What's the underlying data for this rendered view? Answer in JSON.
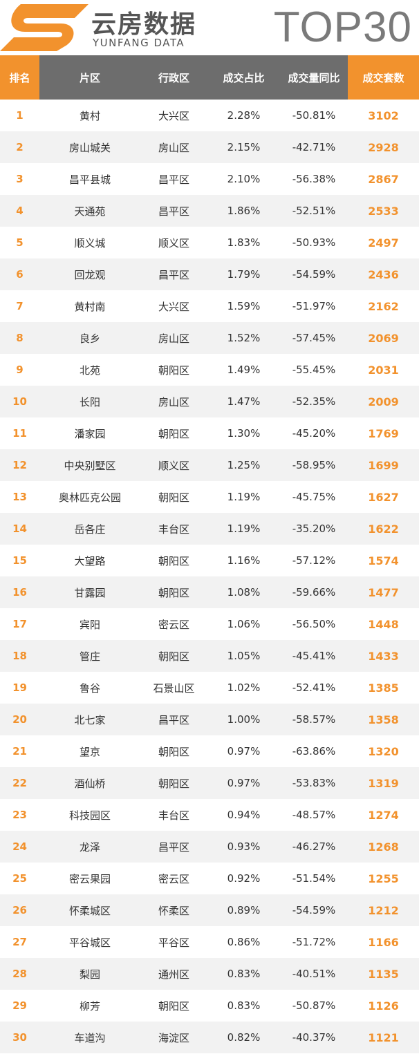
{
  "header": {
    "brand_cn": "云房数据",
    "brand_en": "YUNFANG DATA",
    "title": "TOP30",
    "colors": {
      "accent": "#f2922d",
      "header_gray": "#6d6d6d",
      "title_gray": "#7a7a7a"
    },
    "logo_icon": "yunfang-logo-icon"
  },
  "table": {
    "columns": [
      "排名",
      "片区",
      "行政区",
      "成交占比",
      "成交量同比",
      "成交套数"
    ],
    "rows": [
      [
        "1",
        "黄村",
        "大兴区",
        "2.28%",
        "-50.81%",
        "3102"
      ],
      [
        "2",
        "房山城关",
        "房山区",
        "2.15%",
        "-42.71%",
        "2928"
      ],
      [
        "3",
        "昌平县城",
        "昌平区",
        "2.10%",
        "-56.38%",
        "2867"
      ],
      [
        "4",
        "天通苑",
        "昌平区",
        "1.86%",
        "-52.51%",
        "2533"
      ],
      [
        "5",
        "顺义城",
        "顺义区",
        "1.83%",
        "-50.93%",
        "2497"
      ],
      [
        "6",
        "回龙观",
        "昌平区",
        "1.79%",
        "-54.59%",
        "2436"
      ],
      [
        "7",
        "黄村南",
        "大兴区",
        "1.59%",
        "-51.97%",
        "2162"
      ],
      [
        "8",
        "良乡",
        "房山区",
        "1.52%",
        "-57.45%",
        "2069"
      ],
      [
        "9",
        "北苑",
        "朝阳区",
        "1.49%",
        "-55.45%",
        "2031"
      ],
      [
        "10",
        "长阳",
        "房山区",
        "1.47%",
        "-52.35%",
        "2009"
      ],
      [
        "11",
        "潘家园",
        "朝阳区",
        "1.30%",
        "-45.20%",
        "1769"
      ],
      [
        "12",
        "中央别墅区",
        "顺义区",
        "1.25%",
        "-58.95%",
        "1699"
      ],
      [
        "13",
        "奥林匹克公园",
        "朝阳区",
        "1.19%",
        "-45.75%",
        "1627"
      ],
      [
        "14",
        "岳各庄",
        "丰台区",
        "1.19%",
        "-35.20%",
        "1622"
      ],
      [
        "15",
        "大望路",
        "朝阳区",
        "1.16%",
        "-57.12%",
        "1574"
      ],
      [
        "16",
        "甘露园",
        "朝阳区",
        "1.08%",
        "-59.66%",
        "1477"
      ],
      [
        "17",
        "宾阳",
        "密云区",
        "1.06%",
        "-56.50%",
        "1448"
      ],
      [
        "18",
        "管庄",
        "朝阳区",
        "1.05%",
        "-45.41%",
        "1433"
      ],
      [
        "19",
        "鲁谷",
        "石景山区",
        "1.02%",
        "-52.41%",
        "1385"
      ],
      [
        "20",
        "北七家",
        "昌平区",
        "1.00%",
        "-58.57%",
        "1358"
      ],
      [
        "21",
        "望京",
        "朝阳区",
        "0.97%",
        "-63.86%",
        "1320"
      ],
      [
        "22",
        "酒仙桥",
        "朝阳区",
        "0.97%",
        "-53.83%",
        "1319"
      ],
      [
        "23",
        "科技园区",
        "丰台区",
        "0.94%",
        "-48.57%",
        "1274"
      ],
      [
        "24",
        "龙泽",
        "昌平区",
        "0.93%",
        "-46.27%",
        "1268"
      ],
      [
        "25",
        "密云果园",
        "密云区",
        "0.92%",
        "-51.54%",
        "1255"
      ],
      [
        "26",
        "怀柔城区",
        "怀柔区",
        "0.89%",
        "-54.59%",
        "1212"
      ],
      [
        "27",
        "平谷城区",
        "平谷区",
        "0.86%",
        "-51.72%",
        "1166"
      ],
      [
        "28",
        "梨园",
        "通州区",
        "0.83%",
        "-40.51%",
        "1135"
      ],
      [
        "29",
        "柳芳",
        "朝阳区",
        "0.83%",
        "-50.87%",
        "1126"
      ],
      [
        "30",
        "车道沟",
        "海淀区",
        "0.82%",
        "-40.37%",
        "1121"
      ]
    ]
  }
}
